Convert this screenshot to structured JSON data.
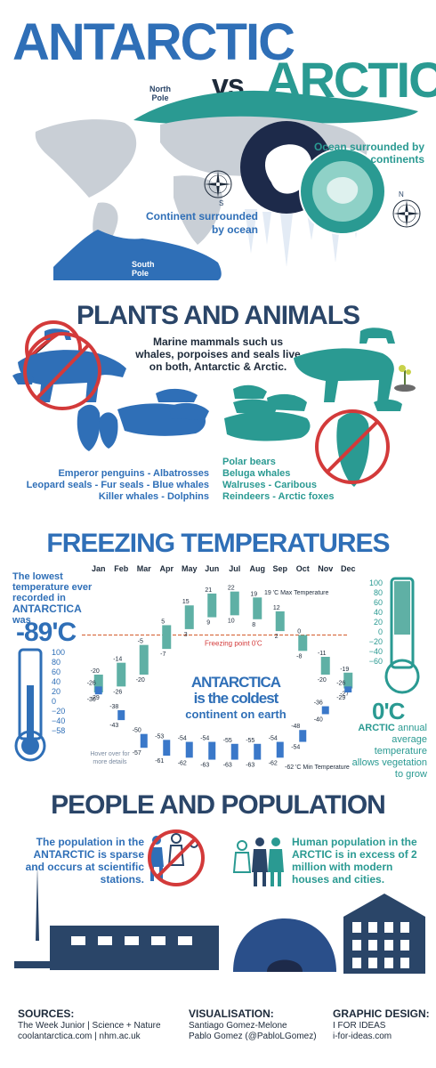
{
  "colors": {
    "blue": "#2f6fb7",
    "teal": "#2a9a92",
    "navy": "#2a4568",
    "red": "#d33a3a",
    "grey": "#c9cfd6"
  },
  "header": {
    "title_left": "ANTARCTIC",
    "vs": "vs",
    "title_right": "ARCTIC"
  },
  "map": {
    "north_pole": "North Pole",
    "south_pole": "South Pole",
    "ocean_caption": "Ocean surrounded by continents",
    "continent_caption": "Continent surrounded by ocean",
    "compass_s": "S",
    "compass_n": "N"
  },
  "plants": {
    "title": "PLANTS AND ANIMALS",
    "intro": "Marine mammals such us whales, porpoises and seals live on both, Antarctic & Arctic.",
    "antarctic_list": [
      "Emperor penguins - Albatrosses",
      "Leopard seals - Fur seals - Blue whales",
      "Killer whales - Dolphins"
    ],
    "arctic_list": [
      "Polar bears",
      "Beluga whales",
      "Walruses - Caribous",
      "Reindeers - Arctic foxes"
    ]
  },
  "temps": {
    "title": "FREEZING TEMPERATURES",
    "lowest_text": "The lowest temperature ever recorded in",
    "lowest_place": "ANTARCTICA",
    "lowest_was": "was",
    "lowest_value": "-89'C",
    "left_scale": [
      "100",
      "80",
      "60",
      "40",
      "20",
      "0",
      "−20",
      "−40",
      "−58"
    ],
    "right_scale": [
      "100",
      "80",
      "60",
      "40",
      "20",
      "0",
      "−20",
      "−40",
      "−60"
    ],
    "freezing_label": "Freezing point 0'C",
    "max_label": "'C Max Temperature",
    "min_label": "'C Min Temperature",
    "max_label_value": "19",
    "min_label_value": "-62",
    "hover_note": "Hover over for more details",
    "coldest_1": "ANTARCTICA",
    "coldest_2": "is the coldest",
    "coldest_3": "continent on earth",
    "arctic_value": "0'C",
    "arctic_place": "ARCTIC",
    "arctic_text": "annual average temperature allows vegetation to grow"
  },
  "chart_data": {
    "type": "range-bar",
    "categories": [
      "Jan",
      "Feb",
      "Mar",
      "Apr",
      "May",
      "Jun",
      "Jul",
      "Aug",
      "Sep",
      "Oct",
      "Nov",
      "Dec"
    ],
    "series": [
      {
        "name": "Max Temperature",
        "color": "#5fb0a5",
        "high": [
          -20,
          -14,
          -5,
          5,
          15,
          21,
          22,
          19,
          12,
          0,
          -11,
          -19
        ],
        "low": [
          -29,
          -26,
          -20,
          -7,
          3,
          9,
          10,
          8,
          2,
          -8,
          -20,
          -27
        ]
      },
      {
        "name": "Min Temperature",
        "color": "#3a78c9",
        "high": [
          -26,
          -38,
          -50,
          -53,
          -54,
          -54,
          -55,
          -55,
          -54,
          -48,
          -36,
          -26
        ],
        "low": [
          -30,
          -43,
          -57,
          -61,
          -62,
          -63,
          -63,
          -63,
          -62,
          -54,
          -40,
          -29
        ]
      }
    ],
    "ylim": [
      -65,
      25
    ]
  },
  "people": {
    "title": "PEOPLE AND POPULATION",
    "left_1": "The population in the",
    "left_place": "ANTARCTIC",
    "left_2": "is sparse and occurs at scientific stations.",
    "right_1": "Human population in the",
    "right_place": "ARCTIC",
    "right_2": "is in excess of 2 million with modern houses and cities."
  },
  "footer": {
    "sources_title": "SOURCES:",
    "sources_1": "The Week Junior  |  Science + Nature",
    "sources_2": "coolantarctica.com  |  nhm.ac.uk",
    "vis_title": "VISUALISATION:",
    "vis_1": "Santiago Gomez-Melone",
    "vis_2": "Pablo Gomez (@PabloLGomez)",
    "design_title": "GRAPHIC DESIGN:",
    "design_1": "I FOR IDEAS",
    "design_2": "i-for-ideas.com"
  }
}
